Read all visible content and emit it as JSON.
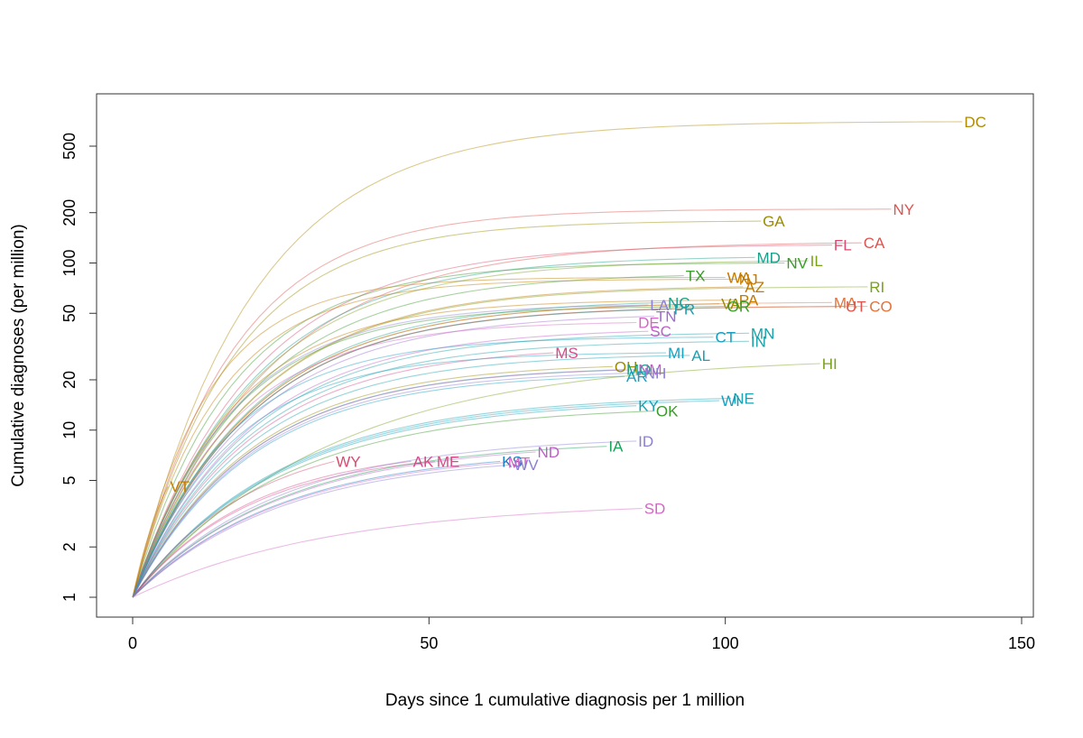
{
  "chart_data": {
    "type": "line",
    "title": "",
    "xlabel": "Days since 1 cumulative diagnosis per 1 million",
    "ylabel": "Cumulative diagnoses (per million)",
    "xlim": [
      0,
      150
    ],
    "ylim": [
      1,
      1000
    ],
    "yscale": "log",
    "x_ticks": [
      0,
      50,
      100,
      150
    ],
    "y_ticks": [
      1,
      2,
      5,
      10,
      20,
      50,
      100,
      200,
      500
    ],
    "grid": false,
    "series": [
      {
        "name": "DC",
        "color": "#b08a00",
        "end": [
          140,
          700
        ],
        "k": 0.05
      },
      {
        "name": "NY",
        "color": "#e0524e",
        "end": [
          128,
          210
        ],
        "k": 0.06
      },
      {
        "name": "GA",
        "color": "#9a8c00",
        "end": [
          106,
          178
        ],
        "k": 0.06
      },
      {
        "name": "FL",
        "color": "#d74b6e",
        "end": [
          118,
          128
        ],
        "k": 0.05
      },
      {
        "name": "CA",
        "color": "#e0524e",
        "end": [
          123,
          132
        ],
        "k": 0.045
      },
      {
        "name": "MD",
        "color": "#1a9f8a",
        "end": [
          105,
          108
        ],
        "k": 0.05
      },
      {
        "name": "NV",
        "color": "#3a9a2a",
        "end": [
          110,
          100
        ],
        "k": 0.06
      },
      {
        "name": "IL",
        "color": "#7aa11a",
        "end": [
          114,
          103
        ],
        "k": 0.05
      },
      {
        "name": "TX",
        "color": "#3a9a2a",
        "end": [
          93,
          84
        ],
        "k": 0.05
      },
      {
        "name": "WA",
        "color": "#c27a00",
        "end": [
          100,
          82
        ],
        "k": 0.08
      },
      {
        "name": "NJ",
        "color": "#c27a00",
        "end": [
          102,
          80
        ],
        "k": 0.07
      },
      {
        "name": "AZ",
        "color": "#c27a00",
        "end": [
          103,
          72
        ],
        "k": 0.05
      },
      {
        "name": "RI",
        "color": "#7aa11a",
        "end": [
          124,
          72
        ],
        "k": 0.05
      },
      {
        "name": "PA",
        "color": "#c27a00",
        "end": [
          102,
          60
        ],
        "k": 0.06
      },
      {
        "name": "VA",
        "color": "#9a8c00",
        "end": [
          99,
          57
        ],
        "k": 0.05
      },
      {
        "name": "OR",
        "color": "#3a9a2a",
        "end": [
          100,
          55
        ],
        "k": 0.06
      },
      {
        "name": "MA",
        "color": "#e2733a",
        "end": [
          118,
          58
        ],
        "k": 0.05
      },
      {
        "name": "UT",
        "color": "#e0524e",
        "end": [
          120,
          55
        ],
        "k": 0.05
      },
      {
        "name": "CO",
        "color": "#e2733a",
        "end": [
          124,
          55
        ],
        "k": 0.05
      },
      {
        "name": "LA",
        "color": "#8a7fd4",
        "end": [
          87,
          56
        ],
        "k": 0.06
      },
      {
        "name": "NC",
        "color": "#1a9f8a",
        "end": [
          90,
          58
        ],
        "k": 0.05
      },
      {
        "name": "PR",
        "color": "#1aa0b0",
        "end": [
          91,
          53
        ],
        "k": 0.05
      },
      {
        "name": "TN",
        "color": "#a06ad0",
        "end": [
          88,
          48
        ],
        "k": 0.05
      },
      {
        "name": "DE",
        "color": "#d466c4",
        "end": [
          85,
          44
        ],
        "k": 0.06
      },
      {
        "name": "SC",
        "color": "#c05ec8",
        "end": [
          87,
          39
        ],
        "k": 0.05
      },
      {
        "name": "CT",
        "color": "#1a9fc0",
        "end": [
          98,
          36
        ],
        "k": 0.06
      },
      {
        "name": "MN",
        "color": "#1aa0a8",
        "end": [
          104,
          38
        ],
        "k": 0.05
      },
      {
        "name": "IN",
        "color": "#1aa0a8",
        "end": [
          104,
          34
        ],
        "k": 0.05
      },
      {
        "name": "MS",
        "color": "#d74b8a",
        "end": [
          71,
          29
        ],
        "k": 0.05
      },
      {
        "name": "MI",
        "color": "#1a9fc0",
        "end": [
          90,
          29
        ],
        "k": 0.06
      },
      {
        "name": "AL",
        "color": "#1aa0b0",
        "end": [
          94,
          28
        ],
        "k": 0.05
      },
      {
        "name": "OH",
        "color": "#9a8c00",
        "end": [
          81,
          24
        ],
        "k": 0.05
      },
      {
        "name": "MO",
        "color": "#1aa08a",
        "end": [
          83,
          23
        ],
        "k": 0.05
      },
      {
        "name": "NM",
        "color": "#c05ec8",
        "end": [
          85,
          23
        ],
        "k": 0.05
      },
      {
        "name": "AR",
        "color": "#1a9fc0",
        "end": [
          83,
          21
        ],
        "k": 0.05
      },
      {
        "name": "NH",
        "color": "#8a7fd4",
        "end": [
          86,
          22
        ],
        "k": 0.05
      },
      {
        "name": "HI",
        "color": "#7aa11a",
        "end": [
          116,
          25
        ],
        "k": 0.03
      },
      {
        "name": "KY",
        "color": "#1aa0b0",
        "end": [
          85,
          14
        ],
        "k": 0.04
      },
      {
        "name": "OK",
        "color": "#3a9a2a",
        "end": [
          88,
          13
        ],
        "k": 0.04
      },
      {
        "name": "WI",
        "color": "#1a9fc0",
        "end": [
          99,
          15
        ],
        "k": 0.04
      },
      {
        "name": "NE",
        "color": "#1aa0b0",
        "end": [
          101,
          15.5
        ],
        "k": 0.04
      },
      {
        "name": "WY",
        "color": "#d74b6e",
        "end": [
          34,
          6.5
        ],
        "k": 0.05
      },
      {
        "name": "AK",
        "color": "#d74b8a",
        "end": [
          47,
          6.5
        ],
        "k": 0.05
      },
      {
        "name": "ME",
        "color": "#d74b8a",
        "end": [
          51,
          6.5
        ],
        "k": 0.05
      },
      {
        "name": "KS",
        "color": "#1a7fc0",
        "end": [
          62,
          6.5
        ],
        "k": 0.04
      },
      {
        "name": "MT",
        "color": "#d466c4",
        "end": [
          63,
          6.4
        ],
        "k": 0.04
      },
      {
        "name": "WV",
        "color": "#8a7fd4",
        "end": [
          64,
          6.2
        ],
        "k": 0.04
      },
      {
        "name": "ND",
        "color": "#c05ec8",
        "end": [
          68,
          7.4
        ],
        "k": 0.04
      },
      {
        "name": "IA",
        "color": "#1aa05a",
        "end": [
          80,
          8.0
        ],
        "k": 0.04
      },
      {
        "name": "ID",
        "color": "#8a7fd4",
        "end": [
          85,
          8.6
        ],
        "k": 0.04
      },
      {
        "name": "VT",
        "color": "#c27a00",
        "end": [
          6,
          4.6
        ],
        "k": 0.15
      },
      {
        "name": "SD",
        "color": "#d466c4",
        "end": [
          86,
          3.4
        ],
        "k": 0.03
      }
    ]
  }
}
